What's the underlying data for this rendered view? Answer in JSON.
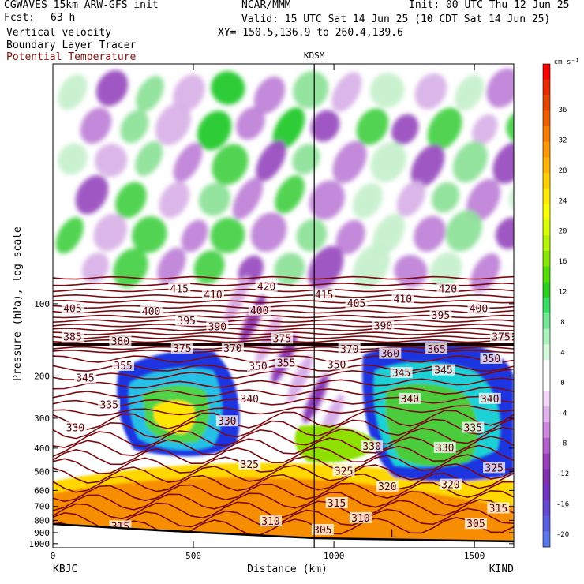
{
  "header": {
    "model": "CGWAVES 15km ARW-GFS init",
    "fcst_label": "Fcst:",
    "fcst_value": "63 h",
    "org": "NCAR/MMM",
    "init": "Init: 00 UTC Thu 12 Jun 25",
    "valid": "Valid: 15 UTC Sat 14 Jun 25 (10 CDT Sat 14 Jun 25)",
    "xy": "XY= 150.5,136.9 to 260.4,139.6",
    "fields": [
      "Vertical velocity",
      "Boundary Layer Tracer",
      "Potential Temperature"
    ]
  },
  "colors": {
    "theta": "#7a0a10",
    "theta_label": "#5a0005"
  },
  "chart_data": {
    "type": "heatmap",
    "title": "",
    "xlabel": "Distance (km)",
    "ylabel": "Pressure (hPa), log scale",
    "x_ticks": [
      0,
      500,
      1000,
      1500
    ],
    "x_range": [
      0,
      1640
    ],
    "y_ticks": [
      100,
      200,
      300,
      400,
      500,
      600,
      700,
      800,
      900,
      1000
    ],
    "y_range": [
      1040,
      10
    ],
    "left_station": "KBJC",
    "right_station": "KIND",
    "marker_station": "KDSM",
    "marker_km": 930,
    "low_marker": "L",
    "colorbar": {
      "unit": "cm s⁻¹",
      "labels": [
        36,
        32,
        28,
        24,
        20,
        16,
        12,
        8,
        4,
        0,
        -4,
        -8,
        -12,
        -16,
        -20
      ],
      "colors": [
        "#ff0000",
        "#ee2800",
        "#e64400",
        "#f05e00",
        "#f77a00",
        "#fc9800",
        "#ffb300",
        "#ffd000",
        "#ffea00",
        "#f8ff00",
        "#d6ff00",
        "#b4f400",
        "#86e600",
        "#54dc00",
        "#2dd020",
        "#38dc60",
        "#72e494",
        "#a8f0bc",
        "#d4f8dc",
        "#ffffff",
        "#ffffff",
        "#f3d6f6",
        "#e0b0ec",
        "#cc86dc",
        "#b460cc",
        "#9a40bc",
        "#8030ae",
        "#7034c0",
        "#6448ce",
        "#5a5ede",
        "#5a78e8"
      ]
    },
    "theta_labels": [
      {
        "v": "405",
        "km": 70,
        "p": 105
      },
      {
        "v": "415",
        "km": 450,
        "p": 87
      },
      {
        "v": "410",
        "km": 570,
        "p": 92
      },
      {
        "v": "420",
        "km": 760,
        "p": 85
      },
      {
        "v": "400",
        "km": 350,
        "p": 108
      },
      {
        "v": "395",
        "km": 475,
        "p": 118
      },
      {
        "v": "390",
        "km": 585,
        "p": 125
      },
      {
        "v": "400",
        "km": 735,
        "p": 107
      },
      {
        "v": "415",
        "km": 965,
        "p": 92
      },
      {
        "v": "405",
        "km": 1080,
        "p": 100
      },
      {
        "v": "410",
        "km": 1245,
        "p": 96
      },
      {
        "v": "420",
        "km": 1405,
        "p": 87
      },
      {
        "v": "395",
        "km": 1380,
        "p": 112
      },
      {
        "v": "400",
        "km": 1515,
        "p": 105
      },
      {
        "v": "385",
        "km": 70,
        "p": 138
      },
      {
        "v": "380",
        "km": 240,
        "p": 144
      },
      {
        "v": "375",
        "km": 460,
        "p": 154
      },
      {
        "v": "370",
        "km": 640,
        "p": 154
      },
      {
        "v": "375",
        "km": 815,
        "p": 140
      },
      {
        "v": "390",
        "km": 1175,
        "p": 124
      },
      {
        "v": "375",
        "km": 1595,
        "p": 138
      },
      {
        "v": "370",
        "km": 1055,
        "p": 155
      },
      {
        "v": "365",
        "km": 1365,
        "p": 155
      },
      {
        "v": "360",
        "km": 1200,
        "p": 162
      },
      {
        "v": "355",
        "km": 250,
        "p": 182
      },
      {
        "v": "350",
        "km": 730,
        "p": 183
      },
      {
        "v": "355",
        "km": 830,
        "p": 177
      },
      {
        "v": "350",
        "km": 1010,
        "p": 180
      },
      {
        "v": "345",
        "km": 1240,
        "p": 195
      },
      {
        "v": "345",
        "km": 1390,
        "p": 190
      },
      {
        "v": "350",
        "km": 1560,
        "p": 170
      },
      {
        "v": "345",
        "km": 115,
        "p": 205
      },
      {
        "v": "340",
        "km": 700,
        "p": 250
      },
      {
        "v": "340",
        "km": 1270,
        "p": 250
      },
      {
        "v": "340",
        "km": 1555,
        "p": 250
      },
      {
        "v": "335",
        "km": 200,
        "p": 265
      },
      {
        "v": "330",
        "km": 80,
        "p": 330
      },
      {
        "v": "330",
        "km": 620,
        "p": 310
      },
      {
        "v": "335",
        "km": 1495,
        "p": 330
      },
      {
        "v": "330",
        "km": 1135,
        "p": 395
      },
      {
        "v": "330",
        "km": 1395,
        "p": 400
      },
      {
        "v": "325",
        "km": 700,
        "p": 470
      },
      {
        "v": "325",
        "km": 1035,
        "p": 500
      },
      {
        "v": "325",
        "km": 1570,
        "p": 485
      },
      {
        "v": "320",
        "km": 1190,
        "p": 580
      },
      {
        "v": "320",
        "km": 1415,
        "p": 570
      },
      {
        "v": "315",
        "km": 1010,
        "p": 680
      },
      {
        "v": "315",
        "km": 1585,
        "p": 715
      },
      {
        "v": "315",
        "km": 240,
        "p": 850
      },
      {
        "v": "310",
        "km": 775,
        "p": 810
      },
      {
        "v": "310",
        "km": 1095,
        "p": 785
      },
      {
        "v": "305",
        "km": 1505,
        "p": 830
      },
      {
        "v": "305",
        "km": 960,
        "p": 880
      }
    ]
  }
}
